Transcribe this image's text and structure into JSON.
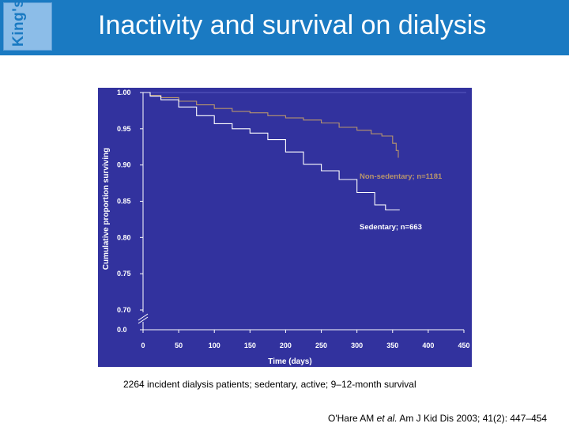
{
  "header": {
    "logo_text": "King's",
    "title": "Inactivity and survival on dialysis"
  },
  "colors": {
    "header_bg": "#1a7ac2",
    "plot_bg": "#32329e",
    "non_sedentary": "#b8956c",
    "sedentary": "#ffffff"
  },
  "chart_data": {
    "type": "line",
    "title": "",
    "xlabel": "Time (days)",
    "ylabel": "Cumulative proportion surviving",
    "xlim": [
      0,
      450
    ],
    "ylim": [
      0.0,
      1.0
    ],
    "axis_break": "between 0.0 and 0.70",
    "x_ticks": [
      "0",
      "50",
      "100",
      "150",
      "200",
      "250",
      "300",
      "350",
      "400",
      "450"
    ],
    "y_ticks": [
      "0.0",
      "0.70",
      "0.75",
      "0.80",
      "0.85",
      "0.90",
      "0.95",
      "1.00"
    ],
    "series": [
      {
        "name": "Non-sedentary; n=1181",
        "x": [
          0,
          10,
          25,
          50,
          75,
          100,
          125,
          150,
          175,
          200,
          225,
          250,
          275,
          300,
          320,
          335,
          350,
          355,
          358
        ],
        "y": [
          1.0,
          0.996,
          0.993,
          0.988,
          0.983,
          0.978,
          0.974,
          0.972,
          0.968,
          0.965,
          0.962,
          0.958,
          0.952,
          0.948,
          0.943,
          0.94,
          0.93,
          0.92,
          0.91
        ]
      },
      {
        "name": "Sedentary; n=663",
        "x": [
          0,
          10,
          25,
          50,
          75,
          100,
          125,
          150,
          175,
          200,
          225,
          250,
          275,
          300,
          325,
          340,
          360
        ],
        "y": [
          1.0,
          0.995,
          0.99,
          0.98,
          0.968,
          0.957,
          0.95,
          0.944,
          0.935,
          0.918,
          0.901,
          0.892,
          0.88,
          0.862,
          0.845,
          0.838,
          0.838
        ]
      }
    ]
  },
  "caption": "2264 incident dialysis patients; sedentary, active; 9–12-month survival",
  "citation": {
    "prefix": "O'Hare AM ",
    "italic": "et al.",
    "suffix": " Am J Kid Dis 2003; 41(2): 447–454"
  }
}
